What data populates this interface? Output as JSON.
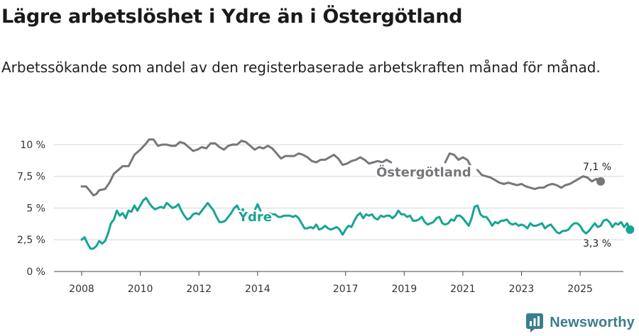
{
  "title": "Lägre arbetslöshet i Ydre än i Östergötland",
  "subtitle": "Arbetssökande som andel av den registerbaserade arbetskraften månad för månad.",
  "brand": "Newsworthy",
  "colors": {
    "ostergotland": "#77767b",
    "ydre": "#17a493",
    "axis": "#444444",
    "grid": "#d6d6d6"
  },
  "chart_data": {
    "type": "line",
    "title": "Lägre arbetslöshet i Ydre än i Östergötland",
    "xlabel": "",
    "ylabel": "",
    "xlim": [
      2007.4,
      2026.6
    ],
    "ylim": [
      0,
      10.5
    ],
    "y_ticks": [
      0,
      2.5,
      5,
      7.5,
      10
    ],
    "y_tick_labels": [
      "0 %",
      "2,5 %",
      "5 %",
      "7,5 %",
      "10 %"
    ],
    "x_ticks": [
      2008,
      2010,
      2012,
      2014,
      2017,
      2019,
      2021,
      2023,
      2025
    ],
    "x_tick_labels": [
      "2008",
      "2010",
      "2012",
      "2014",
      "2017",
      "2019",
      "2021",
      "2023",
      "2025"
    ],
    "series": [
      {
        "name": "Östergötland",
        "label": "Östergötland",
        "end_label": "7,1 %",
        "points": [
          [
            2008.0,
            6.7
          ],
          [
            2008.15,
            6.7
          ],
          [
            2008.3,
            6.3
          ],
          [
            2008.4,
            6.0
          ],
          [
            2008.5,
            6.1
          ],
          [
            2008.6,
            6.4
          ],
          [
            2008.8,
            6.5
          ],
          [
            2008.95,
            7.0
          ],
          [
            2009.1,
            7.7
          ],
          [
            2009.25,
            8.0
          ],
          [
            2009.4,
            8.3
          ],
          [
            2009.6,
            8.3
          ],
          [
            2009.8,
            9.2
          ],
          [
            2010.0,
            9.6
          ],
          [
            2010.2,
            10.1
          ],
          [
            2010.3,
            10.4
          ],
          [
            2010.45,
            10.4
          ],
          [
            2010.6,
            9.9
          ],
          [
            2010.75,
            10.0
          ],
          [
            2010.9,
            10.0
          ],
          [
            2011.05,
            9.9
          ],
          [
            2011.2,
            9.9
          ],
          [
            2011.35,
            10.2
          ],
          [
            2011.5,
            10.1
          ],
          [
            2011.65,
            9.8
          ],
          [
            2011.8,
            9.5
          ],
          [
            2011.95,
            9.6
          ],
          [
            2012.1,
            9.8
          ],
          [
            2012.25,
            9.7
          ],
          [
            2012.4,
            10.1
          ],
          [
            2012.55,
            10.1
          ],
          [
            2012.7,
            9.8
          ],
          [
            2012.85,
            9.6
          ],
          [
            2013.0,
            9.9
          ],
          [
            2013.15,
            10.0
          ],
          [
            2013.3,
            10.0
          ],
          [
            2013.45,
            10.3
          ],
          [
            2013.6,
            10.2
          ],
          [
            2013.75,
            9.9
          ],
          [
            2013.9,
            9.6
          ],
          [
            2014.05,
            9.8
          ],
          [
            2014.2,
            9.7
          ],
          [
            2014.35,
            9.9
          ],
          [
            2014.5,
            9.7
          ],
          [
            2014.65,
            9.3
          ],
          [
            2014.8,
            8.9
          ],
          [
            2014.95,
            9.1
          ],
          [
            2015.1,
            9.1
          ],
          [
            2015.25,
            9.1
          ],
          [
            2015.4,
            9.3
          ],
          [
            2015.55,
            9.2
          ],
          [
            2015.7,
            9.0
          ],
          [
            2015.85,
            8.7
          ],
          [
            2016.0,
            8.6
          ],
          [
            2016.15,
            8.8
          ],
          [
            2016.3,
            8.8
          ],
          [
            2016.45,
            9.0
          ],
          [
            2016.6,
            9.2
          ],
          [
            2016.75,
            8.9
          ],
          [
            2016.9,
            8.4
          ],
          [
            2017.05,
            8.5
          ],
          [
            2017.2,
            8.7
          ],
          [
            2017.35,
            8.8
          ],
          [
            2017.5,
            9.0
          ],
          [
            2017.65,
            8.8
          ],
          [
            2017.8,
            8.5
          ],
          [
            2017.95,
            8.6
          ],
          [
            2018.1,
            8.7
          ],
          [
            2018.25,
            8.6
          ],
          [
            2018.4,
            8.8
          ],
          [
            2018.55,
            8.6
          ],
          null,
          [
            2020.4,
            8.6
          ],
          [
            2020.55,
            9.3
          ],
          [
            2020.7,
            9.2
          ],
          [
            2020.85,
            8.8
          ],
          [
            2021.0,
            9.0
          ],
          [
            2021.15,
            8.8
          ],
          [
            2021.25,
            8.4
          ],
          null,
          [
            2021.5,
            8.0
          ],
          [
            2021.65,
            7.6
          ],
          [
            2021.8,
            7.5
          ],
          [
            2021.95,
            7.4
          ],
          [
            2022.1,
            7.2
          ],
          [
            2022.25,
            7.0
          ],
          [
            2022.4,
            6.9
          ],
          [
            2022.55,
            7.0
          ],
          [
            2022.7,
            6.9
          ],
          [
            2022.85,
            6.8
          ],
          [
            2023.0,
            6.9
          ],
          [
            2023.15,
            6.7
          ],
          [
            2023.3,
            6.6
          ],
          [
            2023.45,
            6.5
          ],
          [
            2023.6,
            6.6
          ],
          [
            2023.75,
            6.6
          ],
          [
            2023.9,
            6.8
          ],
          [
            2024.05,
            6.9
          ],
          [
            2024.2,
            6.8
          ],
          [
            2024.35,
            6.6
          ],
          [
            2024.5,
            6.8
          ],
          [
            2024.65,
            6.9
          ],
          [
            2024.8,
            7.1
          ],
          [
            2024.95,
            7.3
          ],
          [
            2025.1,
            7.5
          ],
          [
            2025.25,
            7.4
          ],
          [
            2025.4,
            7.1
          ],
          [
            2025.55,
            7.3
          ],
          [
            2025.7,
            7.1
          ]
        ]
      },
      {
        "name": "Ydre",
        "label": "Ydre",
        "end_label": "3,3 %",
        "points": [
          [
            2008.0,
            2.5
          ],
          [
            2008.1,
            2.7
          ],
          [
            2008.2,
            2.2
          ],
          [
            2008.3,
            1.8
          ],
          [
            2008.4,
            1.8
          ],
          [
            2008.5,
            2.0
          ],
          [
            2008.6,
            2.4
          ],
          [
            2008.7,
            2.2
          ],
          [
            2008.8,
            2.4
          ],
          [
            2008.9,
            3.0
          ],
          [
            2009.0,
            3.8
          ],
          [
            2009.1,
            4.1
          ],
          [
            2009.2,
            4.8
          ],
          [
            2009.3,
            4.4
          ],
          [
            2009.4,
            4.6
          ],
          [
            2009.5,
            4.2
          ],
          [
            2009.6,
            4.8
          ],
          [
            2009.7,
            4.7
          ],
          [
            2009.8,
            5.2
          ],
          [
            2009.9,
            4.8
          ],
          [
            2010.0,
            5.2
          ],
          [
            2010.1,
            5.6
          ],
          [
            2010.2,
            5.8
          ],
          [
            2010.3,
            5.4
          ],
          [
            2010.4,
            5.1
          ],
          [
            2010.5,
            4.9
          ],
          [
            2010.6,
            5.0
          ],
          [
            2010.7,
            5.1
          ],
          [
            2010.8,
            5.0
          ],
          [
            2010.9,
            5.4
          ],
          [
            2011.0,
            5.2
          ],
          [
            2011.1,
            5.0
          ],
          [
            2011.2,
            5.1
          ],
          [
            2011.3,
            5.3
          ],
          [
            2011.4,
            4.8
          ],
          [
            2011.5,
            4.4
          ],
          [
            2011.6,
            4.1
          ],
          [
            2011.7,
            4.2
          ],
          [
            2011.8,
            4.5
          ],
          [
            2011.9,
            4.6
          ],
          [
            2012.0,
            4.5
          ],
          [
            2012.1,
            4.8
          ],
          [
            2012.2,
            5.1
          ],
          [
            2012.3,
            5.4
          ],
          [
            2012.4,
            5.1
          ],
          [
            2012.5,
            4.8
          ],
          [
            2012.6,
            4.3
          ],
          [
            2012.7,
            3.9
          ],
          [
            2012.8,
            3.9
          ],
          [
            2012.9,
            4.0
          ],
          [
            2013.0,
            4.3
          ],
          [
            2013.1,
            4.6
          ],
          [
            2013.2,
            5.0
          ],
          [
            2013.3,
            5.2
          ],
          [
            2013.4,
            4.7
          ],
          [
            2013.5,
            4.9
          ],
          [
            2013.6,
            4.5
          ],
          null,
          [
            2013.9,
            4.8
          ],
          [
            2014.0,
            5.3
          ],
          [
            2014.1,
            4.8
          ],
          null,
          [
            2014.4,
            4.6
          ],
          [
            2014.5,
            4.5
          ],
          [
            2014.6,
            4.5
          ],
          [
            2014.7,
            4.3
          ],
          [
            2014.8,
            4.3
          ],
          [
            2014.9,
            4.4
          ],
          [
            2015.0,
            4.4
          ],
          [
            2015.1,
            4.4
          ],
          [
            2015.2,
            4.3
          ],
          [
            2015.3,
            4.4
          ],
          [
            2015.4,
            4.2
          ],
          [
            2015.5,
            3.8
          ],
          [
            2015.6,
            3.4
          ],
          [
            2015.7,
            3.4
          ],
          [
            2015.8,
            3.5
          ],
          [
            2015.9,
            3.4
          ],
          [
            2016.0,
            3.7
          ],
          [
            2016.1,
            3.3
          ],
          [
            2016.2,
            3.4
          ],
          [
            2016.3,
            3.6
          ],
          [
            2016.4,
            3.4
          ],
          [
            2016.5,
            3.3
          ],
          [
            2016.6,
            3.4
          ],
          [
            2016.7,
            3.5
          ],
          [
            2016.8,
            3.3
          ],
          [
            2016.9,
            2.9
          ],
          [
            2017.0,
            3.3
          ],
          [
            2017.1,
            3.6
          ],
          [
            2017.2,
            3.5
          ],
          [
            2017.3,
            4.0
          ],
          [
            2017.4,
            4.4
          ],
          [
            2017.5,
            4.6
          ],
          [
            2017.6,
            4.2
          ],
          [
            2017.7,
            4.5
          ],
          [
            2017.8,
            4.4
          ],
          [
            2017.9,
            4.5
          ],
          [
            2018.0,
            4.2
          ],
          [
            2018.1,
            4.1
          ],
          [
            2018.2,
            4.4
          ],
          [
            2018.3,
            4.3
          ],
          [
            2018.4,
            4.4
          ],
          [
            2018.5,
            4.4
          ],
          [
            2018.6,
            4.2
          ],
          [
            2018.7,
            4.4
          ],
          [
            2018.8,
            4.8
          ],
          [
            2018.9,
            4.5
          ],
          [
            2019.0,
            4.5
          ],
          [
            2019.1,
            4.3
          ],
          [
            2019.2,
            4.4
          ],
          [
            2019.3,
            4.0
          ],
          [
            2019.4,
            4.0
          ],
          [
            2019.5,
            4.1
          ],
          [
            2019.6,
            4.3
          ],
          [
            2019.7,
            3.9
          ],
          [
            2019.8,
            3.7
          ],
          [
            2019.9,
            3.8
          ],
          [
            2020.0,
            3.9
          ],
          [
            2020.1,
            4.2
          ],
          [
            2020.2,
            4.3
          ],
          [
            2020.3,
            3.8
          ],
          [
            2020.4,
            3.7
          ],
          [
            2020.5,
            3.8
          ],
          [
            2020.6,
            4.1
          ],
          [
            2020.7,
            4.0
          ],
          [
            2020.8,
            4.4
          ],
          [
            2020.9,
            4.4
          ],
          [
            2021.0,
            4.2
          ],
          [
            2021.1,
            3.9
          ],
          [
            2021.2,
            3.6
          ],
          [
            2021.3,
            4.2
          ],
          [
            2021.4,
            5.1
          ],
          [
            2021.5,
            5.2
          ],
          [
            2021.6,
            4.5
          ],
          [
            2021.7,
            4.3
          ],
          [
            2021.8,
            4.3
          ],
          [
            2021.9,
            4.0
          ],
          [
            2022.0,
            3.6
          ],
          [
            2022.1,
            3.9
          ],
          [
            2022.2,
            3.8
          ],
          [
            2022.3,
            4.0
          ],
          [
            2022.4,
            4.0
          ],
          [
            2022.5,
            4.1
          ],
          [
            2022.6,
            3.8
          ],
          [
            2022.7,
            3.7
          ],
          [
            2022.8,
            3.8
          ],
          [
            2022.9,
            3.6
          ],
          [
            2023.0,
            3.7
          ],
          [
            2023.1,
            3.6
          ],
          [
            2023.2,
            3.4
          ],
          [
            2023.3,
            3.8
          ],
          [
            2023.4,
            3.6
          ],
          [
            2023.5,
            3.6
          ],
          [
            2023.6,
            3.7
          ],
          [
            2023.7,
            3.8
          ],
          [
            2023.8,
            3.4
          ],
          [
            2023.9,
            3.6
          ],
          [
            2024.0,
            3.7
          ],
          [
            2024.1,
            3.4
          ],
          [
            2024.2,
            3.1
          ],
          [
            2024.3,
            3.0
          ],
          [
            2024.4,
            3.2
          ],
          [
            2024.5,
            3.2
          ],
          [
            2024.6,
            3.3
          ],
          [
            2024.7,
            3.6
          ],
          [
            2024.8,
            3.8
          ],
          [
            2024.9,
            3.8
          ],
          [
            2025.0,
            3.6
          ],
          [
            2025.1,
            3.2
          ],
          [
            2025.2,
            3.0
          ],
          [
            2025.3,
            3.2
          ],
          [
            2025.4,
            3.5
          ],
          [
            2025.5,
            3.8
          ],
          [
            2025.6,
            3.5
          ],
          [
            2025.7,
            3.6
          ],
          [
            2025.8,
            4.0
          ],
          [
            2025.9,
            4.1
          ],
          [
            2026.0,
            3.9
          ],
          [
            2026.1,
            3.5
          ],
          [
            2026.2,
            3.8
          ],
          [
            2026.3,
            3.7
          ],
          [
            2026.4,
            3.9
          ],
          [
            2026.5,
            3.5
          ],
          [
            2026.6,
            3.8
          ],
          [
            2026.7,
            3.3
          ]
        ]
      }
    ]
  }
}
